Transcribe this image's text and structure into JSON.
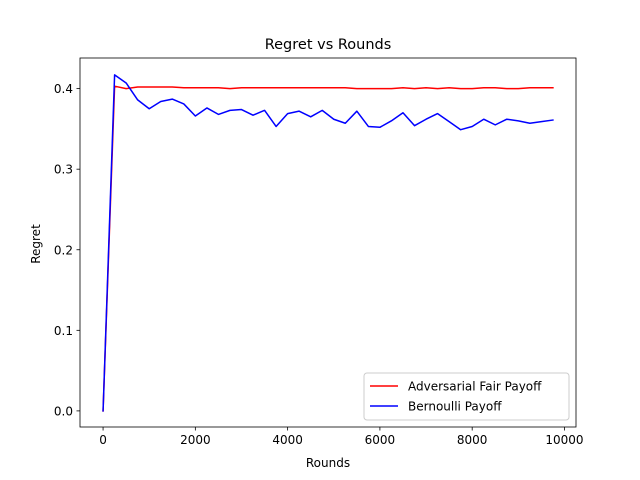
{
  "chart_data": {
    "type": "line",
    "title": "Regret vs Rounds",
    "xlabel": "Rounds",
    "ylabel": "Regret",
    "xlim": [
      -500,
      10250
    ],
    "ylim": [
      -0.02,
      0.438
    ],
    "xticks": [
      0,
      2000,
      4000,
      6000,
      8000,
      10000
    ],
    "yticks": [
      0.0,
      0.1,
      0.2,
      0.3,
      0.4
    ],
    "xtick_labels": [
      "0",
      "2000",
      "4000",
      "6000",
      "8000",
      "10000"
    ],
    "ytick_labels": [
      "0.0",
      "0.1",
      "0.2",
      "0.3",
      "0.4"
    ],
    "grid": false,
    "legend_position": "bottom-right",
    "x": [
      0,
      250,
      500,
      750,
      1000,
      1250,
      1500,
      1750,
      2000,
      2250,
      2500,
      2750,
      3000,
      3250,
      3500,
      3750,
      4000,
      4250,
      4500,
      4750,
      5000,
      5250,
      5500,
      5750,
      6000,
      6250,
      6500,
      6750,
      7000,
      7250,
      7500,
      7750,
      8000,
      8250,
      8500,
      8750,
      9000,
      9250,
      9500,
      9750
    ],
    "series": [
      {
        "name": "Adversarial Fair Payoff",
        "color": "#ff0000",
        "values": [
          0.0,
          0.403,
          0.4,
          0.402,
          0.402,
          0.402,
          0.402,
          0.401,
          0.401,
          0.401,
          0.401,
          0.4,
          0.401,
          0.401,
          0.401,
          0.401,
          0.401,
          0.401,
          0.401,
          0.401,
          0.401,
          0.401,
          0.4,
          0.4,
          0.4,
          0.4,
          0.401,
          0.4,
          0.401,
          0.4,
          0.401,
          0.4,
          0.4,
          0.401,
          0.401,
          0.4,
          0.4,
          0.401,
          0.401,
          0.401
        ]
      },
      {
        "name": "Bernoulli Payoff",
        "color": "#0000ff",
        "values": [
          0.0,
          0.417,
          0.407,
          0.386,
          0.375,
          0.384,
          0.387,
          0.381,
          0.366,
          0.376,
          0.368,
          0.373,
          0.374,
          0.367,
          0.373,
          0.353,
          0.369,
          0.372,
          0.365,
          0.373,
          0.362,
          0.357,
          0.372,
          0.353,
          0.352,
          0.36,
          0.37,
          0.354,
          0.362,
          0.369,
          0.359,
          0.349,
          0.353,
          0.362,
          0.355,
          0.362,
          0.36,
          0.357,
          0.359,
          0.361
        ]
      }
    ]
  }
}
